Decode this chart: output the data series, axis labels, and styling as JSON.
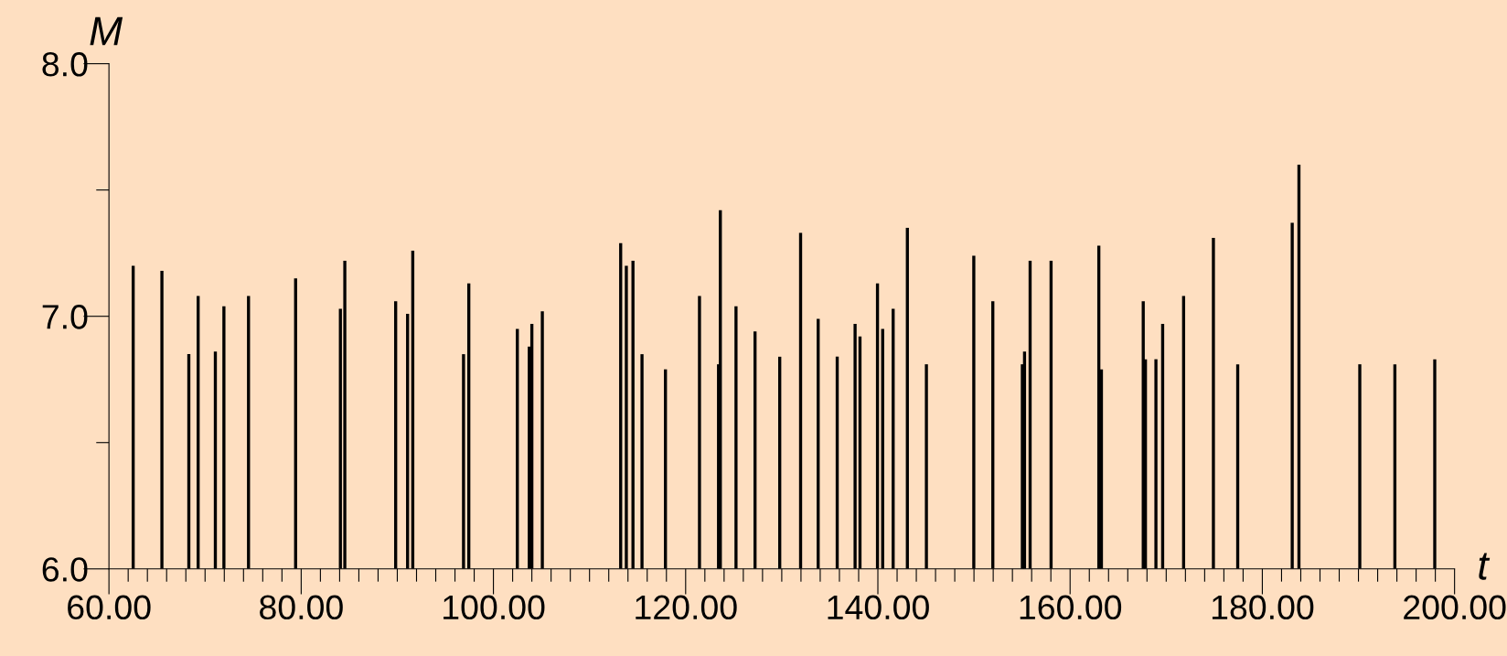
{
  "chart_data": {
    "type": "bar",
    "xlabel": "t",
    "ylabel": "M",
    "x": [
      62.52,
      65.51,
      68.31,
      69.28,
      71.07,
      71.96,
      74.52,
      79.42,
      84.08,
      84.54,
      89.83,
      91.07,
      91.61,
      96.89,
      97.44,
      102.49,
      103.73,
      104.0,
      105.09,
      113.24,
      113.83,
      114.52,
      115.46,
      117.9,
      121.44,
      123.42,
      123.61,
      125.24,
      127.22,
      129.79,
      131.96,
      133.79,
      135.77,
      137.63,
      138.14,
      139.96,
      140.5,
      141.59,
      143.07,
      145.05,
      149.98,
      151.96,
      155.03,
      155.26,
      155.84,
      158.02,
      162.99,
      163.26,
      167.61,
      167.84,
      168.93,
      169.63,
      171.81,
      174.91,
      177.44,
      183.11,
      183.81,
      190.14,
      193.79,
      197.94
    ],
    "values": [
      7.2,
      7.18,
      6.85,
      7.08,
      6.86,
      7.04,
      7.08,
      7.15,
      7.03,
      7.22,
      7.06,
      7.01,
      7.26,
      6.85,
      7.13,
      6.95,
      6.88,
      6.97,
      7.02,
      7.29,
      7.2,
      7.22,
      6.85,
      6.79,
      7.08,
      6.81,
      7.42,
      7.04,
      6.94,
      6.84,
      7.33,
      6.99,
      6.84,
      6.97,
      6.92,
      7.13,
      6.95,
      7.03,
      7.35,
      6.81,
      7.24,
      7.06,
      6.81,
      6.86,
      7.22,
      7.22,
      7.28,
      6.79,
      7.06,
      6.83,
      6.83,
      6.97,
      7.08,
      7.31,
      6.81,
      7.37,
      7.6,
      6.81,
      6.81,
      6.83
    ],
    "color": "#000000",
    "xlim": [
      60,
      200
    ],
    "ylim": [
      6.0,
      8.0
    ],
    "xticks": [
      {
        "value": 60,
        "label": "60.00"
      },
      {
        "value": 62,
        "label": null
      },
      {
        "value": 64,
        "label": null
      },
      {
        "value": 66,
        "label": null
      },
      {
        "value": 68,
        "label": null
      },
      {
        "value": 70,
        "label": null
      },
      {
        "value": 72,
        "label": null
      },
      {
        "value": 74,
        "label": null
      },
      {
        "value": 76,
        "label": null
      },
      {
        "value": 78,
        "label": null
      },
      {
        "value": 80,
        "label": "80.00"
      },
      {
        "value": 82,
        "label": null
      },
      {
        "value": 84,
        "label": null
      },
      {
        "value": 86,
        "label": null
      },
      {
        "value": 88,
        "label": null
      },
      {
        "value": 90,
        "label": null
      },
      {
        "value": 92,
        "label": null
      },
      {
        "value": 94,
        "label": null
      },
      {
        "value": 96,
        "label": null
      },
      {
        "value": 98,
        "label": null
      },
      {
        "value": 100,
        "label": "100.00"
      },
      {
        "value": 102,
        "label": null
      },
      {
        "value": 104,
        "label": null
      },
      {
        "value": 106,
        "label": null
      },
      {
        "value": 108,
        "label": null
      },
      {
        "value": 110,
        "label": null
      },
      {
        "value": 112,
        "label": null
      },
      {
        "value": 114,
        "label": null
      },
      {
        "value": 116,
        "label": null
      },
      {
        "value": 118,
        "label": null
      },
      {
        "value": 120,
        "label": "120.00"
      },
      {
        "value": 122,
        "label": null
      },
      {
        "value": 124,
        "label": null
      },
      {
        "value": 126,
        "label": null
      },
      {
        "value": 128,
        "label": null
      },
      {
        "value": 130,
        "label": null
      },
      {
        "value": 132,
        "label": null
      },
      {
        "value": 134,
        "label": null
      },
      {
        "value": 136,
        "label": null
      },
      {
        "value": 138,
        "label": null
      },
      {
        "value": 140,
        "label": "140.00"
      },
      {
        "value": 142,
        "label": null
      },
      {
        "value": 144,
        "label": null
      },
      {
        "value": 146,
        "label": null
      },
      {
        "value": 148,
        "label": null
      },
      {
        "value": 150,
        "label": null
      },
      {
        "value": 152,
        "label": null
      },
      {
        "value": 154,
        "label": null
      },
      {
        "value": 156,
        "label": null
      },
      {
        "value": 158,
        "label": null
      },
      {
        "value": 160,
        "label": "160.00"
      },
      {
        "value": 162,
        "label": null
      },
      {
        "value": 164,
        "label": null
      },
      {
        "value": 166,
        "label": null
      },
      {
        "value": 168,
        "label": null
      },
      {
        "value": 170,
        "label": null
      },
      {
        "value": 172,
        "label": null
      },
      {
        "value": 174,
        "label": null
      },
      {
        "value": 176,
        "label": null
      },
      {
        "value": 178,
        "label": null
      },
      {
        "value": 180,
        "label": "180.00"
      },
      {
        "value": 182,
        "label": null
      },
      {
        "value": 184,
        "label": null
      },
      {
        "value": 186,
        "label": null
      },
      {
        "value": 188,
        "label": null
      },
      {
        "value": 190,
        "label": null
      },
      {
        "value": 192,
        "label": null
      },
      {
        "value": 194,
        "label": null
      },
      {
        "value": 196,
        "label": null
      },
      {
        "value": 198,
        "label": null
      },
      {
        "value": 200,
        "label": "200.00"
      }
    ],
    "yticks": [
      {
        "value": 6.0,
        "label": "6.0"
      },
      {
        "value": 6.5,
        "label": null
      },
      {
        "value": 7.0,
        "label": "7.0"
      },
      {
        "value": 7.5,
        "label": null
      },
      {
        "value": 8.0,
        "label": "8.0"
      }
    ]
  }
}
